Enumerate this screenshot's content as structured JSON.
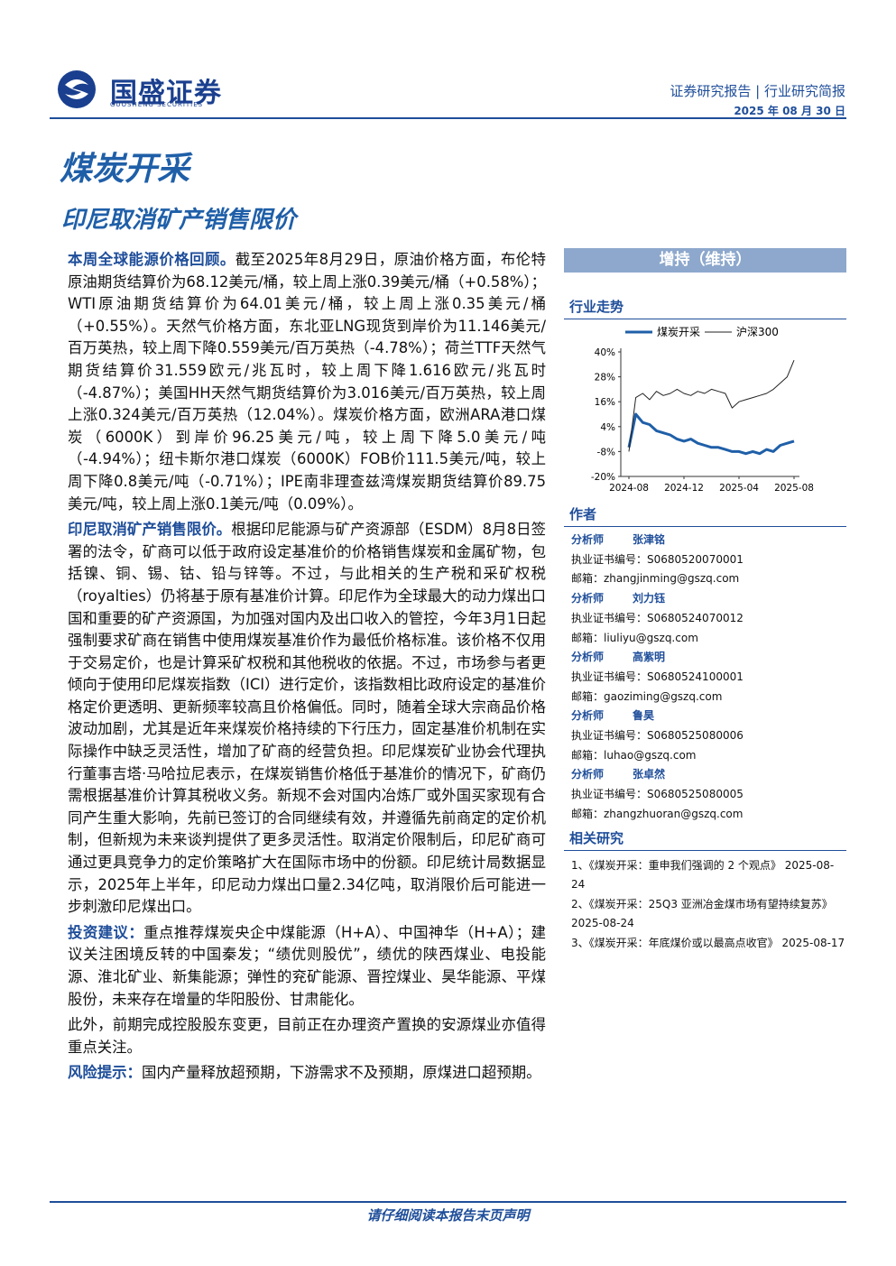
{
  "header": {
    "logo_cn": "国盛证券",
    "logo_en": "GUOSHENG SECURITIES",
    "report_type": "证券研究报告 | 行业研究简报",
    "date": "2025 年 08 月 30 日"
  },
  "title": "煤炭开采",
  "subtitle": "印尼取消矿产销售限价",
  "body": [
    {
      "lead": "本周全球能源价格回顾。",
      "text": "截至2025年8月29日，原油价格方面，布伦特原油期货结算价为68.12美元/桶，较上周上涨0.39美元/桶（+0.58%）；WTI原油期货结算价为64.01美元/桶，较上周上涨0.35美元/桶（+0.55%）。天然气价格方面，东北亚LNG现货到岸价为11.146美元/百万英热，较上周下降0.559美元/百万英热（-4.78%）；荷兰TTF天然气期货结算价31.559欧元/兆瓦时，较上周下降1.616欧元/兆瓦时（-4.87%）；美国HH天然气期货结算价为3.016美元/百万英热，较上周上涨0.324美元/百万英热（12.04%）。煤炭价格方面，欧洲ARA港口煤炭（6000K）到岸价96.25美元/吨，较上周下降5.0美元/吨（-4.94%）；纽卡斯尔港口煤炭（6000K）FOB价111.5美元/吨，较上周下降0.8美元/吨（-0.71%）；IPE南非理查兹湾煤炭期货结算价89.75美元/吨，较上周上涨0.1美元/吨（0.09%）。"
    },
    {
      "lead": "印尼取消矿产销售限价。",
      "text": "根据印尼能源与矿产资源部（ESDM）8月8日签署的法令，矿商可以低于政府设定基准价的价格销售煤炭和金属矿物，包括镍、铜、锡、钴、铅与锌等。不过，与此相关的生产税和采矿权税（royalties）仍将基于原有基准价计算。印尼作为全球最大的动力煤出口国和重要的矿产资源国，为加强对国内及出口收入的管控，今年3月1日起强制要求矿商在销售中使用煤炭基准价作为最低价格标准。该价格不仅用于交易定价，也是计算采矿权税和其他税收的依据。不过，市场参与者更倾向于使用印尼煤炭指数（ICI）进行定价，该指数相比政府设定的基准价格定价更透明、更新频率较高且价格偏低。同时，随着全球大宗商品价格波动加剧，尤其是近年来煤炭价格持续的下行压力，固定基准价机制在实际操作中缺乏灵活性，增加了矿商的经营负担。印尼煤炭矿业协会代理执行董事吉塔·马哈拉尼表示，在煤炭销售价格低于基准价的情况下，矿商仍需根据基准价计算其税收义务。新规不会对国内冶炼厂或外国买家现有合同产生重大影响，先前已签订的合同继续有效，并遵循先前商定的定价机制，但新规为未来谈判提供了更多灵活性。取消定价限制后，印尼矿商可通过更具竞争力的定价策略扩大在国际市场中的份额。印尼统计局数据显示，2025年上半年，印尼动力煤出口量2.34亿吨，取消限价后可能进一步刺激印尼煤出口。"
    },
    {
      "lead": "投资建议：",
      "text": "重点推荐煤炭央企中煤能源（H+A）、中国神华（H+A）；建议关注困境反转的中国秦发；“绩优则股优”，绩优的陕西煤业、电投能源、淮北矿业、新集能源；弹性的兖矿能源、晋控煤业、昊华能源、平煤股份，未来存在增量的华阳股份、甘肃能化。"
    },
    {
      "text": "此外，前期完成控股股东变更，目前正在办理资产置换的安源煤业亦值得重点关注。"
    },
    {
      "lead": "风险提示：",
      "text": "国内产量释放超预期，下游需求不及预期，原煤进口超预期。"
    }
  ],
  "sidebar": {
    "rating": "增持（维持）",
    "trend_title": "行业走势",
    "authors_title": "作者",
    "authors": [
      {
        "role": "分析师",
        "name": "张津铭",
        "cert": "执业证书编号：S0680520070001",
        "email": "邮箱：zhangjinming@gszq.com"
      },
      {
        "role": "分析师",
        "name": "刘力钰",
        "cert": "执业证书编号：S0680524070012",
        "email": "邮箱：liuliyu@gszq.com"
      },
      {
        "role": "分析师",
        "name": "高紫明",
        "cert": "执业证书编号：S0680524100001",
        "email": "邮箱：gaoziming@gszq.com"
      },
      {
        "role": "分析师",
        "name": "鲁昊",
        "cert": "执业证书编号：S0680525080006",
        "email": "邮箱：luhao@gszq.com"
      },
      {
        "role": "分析师",
        "name": "张卓然",
        "cert": "执业证书编号：S0680525080005",
        "email": "邮箱：zhangzhuoran@gszq.com"
      }
    ],
    "related_title": "相关研究",
    "related": [
      "1、《煤炭开采：重申我们强调的 2 个观点》 2025-08-24",
      "2、《煤炭开采：25Q3 亚洲冶金煤市场有望持续复苏》 2025-08-24",
      "3、《煤炭开采：年底煤价或以最高点收官》 2025-08-17"
    ]
  },
  "chart_data": {
    "type": "line",
    "categories": [
      "2024-08",
      null,
      null,
      null,
      null,
      null,
      null,
      null,
      "2024-12",
      null,
      null,
      null,
      null,
      null,
      null,
      null,
      "2025-04",
      null,
      null,
      null,
      null,
      null,
      null,
      null,
      "2025-08"
    ],
    "series": [
      {
        "name": "煤炭开采",
        "color": "#1f5fa8",
        "values": [
          -6,
          10,
          6,
          5,
          2,
          1,
          0,
          -2,
          -3,
          -2,
          -4,
          -5,
          -6,
          -6,
          -7,
          -8,
          -8,
          -9,
          -8,
          -9,
          -7,
          -8,
          -5,
          -4,
          -3
        ]
      },
      {
        "name": "沪深300",
        "color": "#222222",
        "values": [
          -8,
          18,
          20,
          17,
          21,
          19,
          20,
          22,
          20,
          19,
          21,
          20,
          22,
          21,
          20,
          13,
          16,
          17,
          18,
          19,
          20,
          22,
          25,
          28,
          36
        ]
      }
    ],
    "ylim": [
      -20,
      40
    ],
    "yticks": [
      {
        "value": 40,
        "label": "40%"
      },
      {
        "value": 28,
        "label": "28%"
      },
      {
        "value": 16,
        "label": "16%"
      },
      {
        "value": 4,
        "label": "4%"
      },
      {
        "value": -8,
        "label": "-8%"
      },
      {
        "value": -20,
        "label": "-20%"
      }
    ]
  },
  "footer": "请仔细阅读本报告末页声明"
}
